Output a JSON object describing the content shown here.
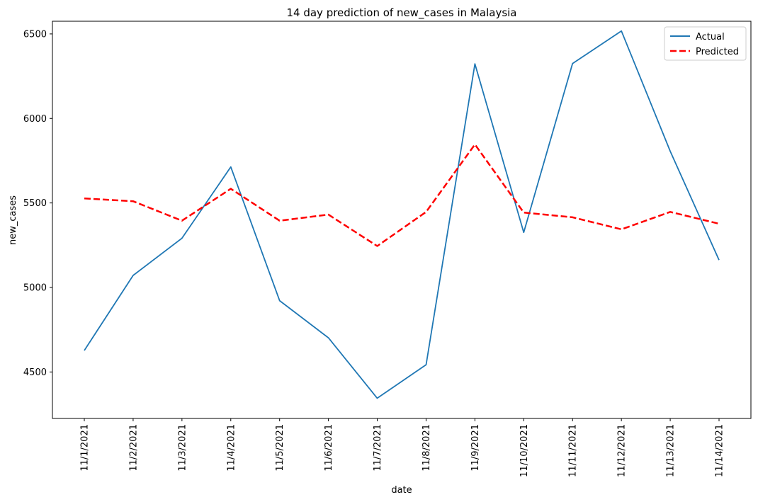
{
  "chart_data": {
    "type": "line",
    "title": "14 day prediction of new_cases in Malaysia",
    "xlabel": "date",
    "ylabel": "new_cases",
    "categories": [
      "11/1/2021",
      "11/2/2021",
      "11/3/2021",
      "11/4/2021",
      "11/5/2021",
      "11/6/2021",
      "11/7/2021",
      "11/8/2021",
      "11/9/2021",
      "11/10/2021",
      "11/11/2021",
      "11/12/2021",
      "11/13/2021",
      "11/14/2021"
    ],
    "y_ticks": [
      "4500",
      "5000",
      "5500",
      "6000",
      "6500"
    ],
    "ylim": [
      4225,
      6575
    ],
    "legend_position": "top-right",
    "grid": false,
    "series": [
      {
        "name": "Actual",
        "color": "#1f77b4",
        "style": "solid",
        "values": [
          4627,
          5071,
          5291,
          5713,
          4922,
          4702,
          4345,
          4543,
          6323,
          5326,
          6325,
          6517,
          5806,
          5162
        ]
      },
      {
        "name": "Predicted",
        "color": "#ff0000",
        "style": "dashed",
        "values": [
          5527,
          5510,
          5395,
          5584,
          5395,
          5431,
          5245,
          5447,
          5846,
          5443,
          5415,
          5344,
          5447,
          5377
        ]
      }
    ]
  }
}
